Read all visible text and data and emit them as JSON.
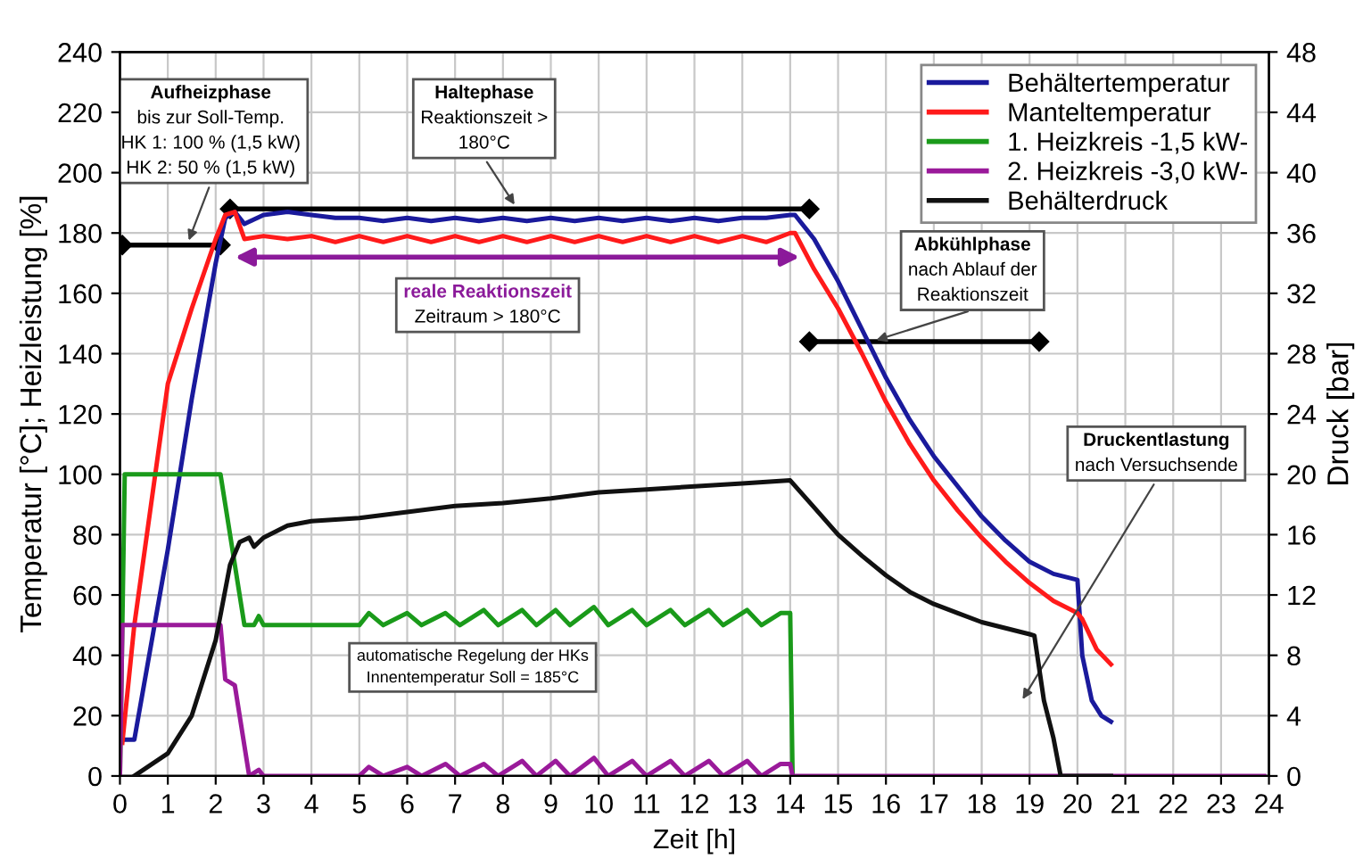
{
  "chart_data": {
    "type": "line",
    "xlabel": "Zeit [h]",
    "ylabel": "Temperatur [°C]; Heizleistung [%]",
    "y2label": "Druck [bar]",
    "xlim": [
      0,
      24
    ],
    "xticks": [
      0,
      1,
      2,
      3,
      4,
      5,
      6,
      7,
      8,
      9,
      10,
      11,
      12,
      13,
      14,
      15,
      16,
      17,
      18,
      19,
      20,
      21,
      22,
      23,
      24
    ],
    "ylim": [
      0,
      240
    ],
    "yticks": [
      0,
      20,
      40,
      60,
      80,
      100,
      120,
      140,
      160,
      180,
      200,
      220,
      240
    ],
    "y2lim": [
      0,
      48
    ],
    "y2ticks": [
      0,
      4,
      8,
      12,
      16,
      20,
      24,
      28,
      32,
      36,
      40,
      44,
      48
    ],
    "grid": true,
    "legend": "top right",
    "marker": "none",
    "line_style": "solid",
    "series": [
      {
        "name": "Behältertemperatur",
        "color": "#1a1a9c",
        "x": [
          0.05,
          0.3,
          0.5,
          1,
          1.5,
          2,
          2.2,
          2.4,
          2.6,
          3,
          3.5,
          4,
          4.5,
          5,
          5.5,
          6,
          6.5,
          7,
          7.5,
          8,
          8.5,
          9,
          9.5,
          10,
          10.5,
          11,
          11.5,
          12,
          12.5,
          13,
          13.5,
          14,
          14.1,
          14.5,
          15,
          15.5,
          16,
          16.5,
          17,
          17.5,
          18,
          18.5,
          19,
          19.5,
          20,
          20.1,
          20.3,
          20.5,
          20.7
        ],
        "values": [
          12,
          12,
          30,
          75,
          125,
          170,
          185,
          187,
          183,
          186,
          187,
          186,
          185,
          185,
          184,
          185,
          184,
          185,
          184,
          185,
          184,
          185,
          184,
          185,
          184,
          185,
          184,
          185,
          184,
          185,
          185,
          186,
          186,
          178,
          164,
          148,
          132,
          118,
          106,
          96,
          86,
          78,
          71,
          67,
          65,
          40,
          25,
          20,
          18
        ]
      },
      {
        "name": "Manteltemperatur",
        "color": "#ff1a1a",
        "x": [
          0.05,
          0.3,
          1,
          1.5,
          2,
          2.2,
          2.4,
          2.6,
          3,
          3.5,
          4,
          4.5,
          5,
          5.5,
          6,
          6.5,
          7,
          7.5,
          8,
          8.5,
          9,
          9.5,
          10,
          10.5,
          11,
          11.5,
          12,
          12.5,
          13,
          13.5,
          14,
          14.1,
          14.5,
          15,
          15.5,
          16,
          16.5,
          17,
          17.5,
          18,
          18.5,
          19,
          19.5,
          20,
          20.1,
          20.4,
          20.7
        ],
        "values": [
          11,
          50,
          130,
          155,
          178,
          186,
          187,
          178,
          179,
          178,
          179,
          177,
          179,
          177,
          179,
          177,
          179,
          177,
          179,
          177,
          179,
          177,
          179,
          177,
          179,
          177,
          179,
          177,
          179,
          177,
          180,
          180,
          168,
          155,
          140,
          124,
          110,
          98,
          88,
          79,
          71,
          64,
          58,
          54,
          52,
          42,
          37
        ]
      },
      {
        "name": "1. Heizkreis -1,5 kW-",
        "color": "#1a9a1a",
        "x": [
          0,
          0.1,
          2.1,
          2.3,
          2.6,
          2.8,
          2.9,
          3,
          5,
          5.2,
          5.5,
          6,
          6.3,
          6.8,
          7.1,
          7.6,
          7.9,
          8.4,
          8.7,
          9.1,
          9.4,
          9.9,
          10.2,
          10.7,
          11,
          11.5,
          11.8,
          12.3,
          12.6,
          13.1,
          13.4,
          13.8,
          14,
          14.05
        ],
        "values": [
          0,
          100,
          100,
          80,
          50,
          50,
          53,
          50,
          50,
          54,
          50,
          54,
          50,
          54,
          50,
          55,
          50,
          55,
          50,
          55,
          50,
          56,
          50,
          55,
          50,
          55,
          50,
          55,
          50,
          55,
          50,
          54,
          54,
          0
        ]
      },
      {
        "name": "2. Heizkreis -3,0 kW-",
        "color": "#9a1a9a",
        "x": [
          0,
          0.05,
          2.1,
          2.2,
          2.4,
          2.7,
          2.9,
          3,
          5,
          5.2,
          5.5,
          6,
          6.3,
          6.8,
          7.1,
          7.6,
          7.9,
          8.4,
          8.7,
          9.1,
          9.4,
          9.9,
          10.2,
          10.7,
          11,
          11.5,
          11.8,
          12.3,
          12.6,
          13.1,
          13.4,
          13.8,
          14,
          14.05,
          23.9
        ],
        "values": [
          0,
          50,
          50,
          32,
          30,
          0,
          2,
          0,
          0,
          3,
          0,
          3,
          0,
          4,
          0,
          4,
          0,
          5,
          0,
          5,
          0,
          6,
          0,
          5,
          0,
          5,
          0,
          5,
          0,
          5,
          0,
          4,
          4,
          0,
          0
        ]
      },
      {
        "name": "Behälterdruck",
        "color": "#111111",
        "axis": "y2",
        "x": [
          0.3,
          1,
          1.5,
          2,
          2.3,
          2.5,
          2.7,
          2.8,
          3,
          3.5,
          4,
          5,
          6,
          7,
          8,
          9,
          10,
          11,
          12,
          13,
          14,
          14.5,
          15,
          15.5,
          16,
          16.5,
          17,
          17.5,
          18,
          18.5,
          19,
          19.1,
          19.3,
          19.5,
          19.65,
          20.7
        ],
        "values": [
          0,
          1.5,
          4,
          9,
          14,
          15.5,
          15.8,
          15.2,
          15.8,
          16.6,
          16.9,
          17.1,
          17.5,
          17.9,
          18.1,
          18.4,
          18.8,
          19,
          19.2,
          19.4,
          19.6,
          17.8,
          16,
          14.6,
          13.3,
          12.2,
          11.4,
          10.8,
          10.2,
          9.8,
          9.4,
          9.3,
          5,
          2.5,
          0,
          0
        ]
      }
    ],
    "annotations": [
      "Aufheizphase\nbis zur Soll-Temp.\nHK 1: 100 % (1,5 kW)\nHK 2: 50 % (1,5 kW)",
      "Haltephase\nReaktionszeit >\n180°C",
      "reale Reaktionszeit\nZeitraum > 180°C",
      "Abkühlphase\nnach Ablauf der\nReaktionszeit",
      "Druckentlastung\nnach Versuchsende",
      "automatische Regelung der HKs\nInnentemperatur Soll = 185°C"
    ]
  }
}
